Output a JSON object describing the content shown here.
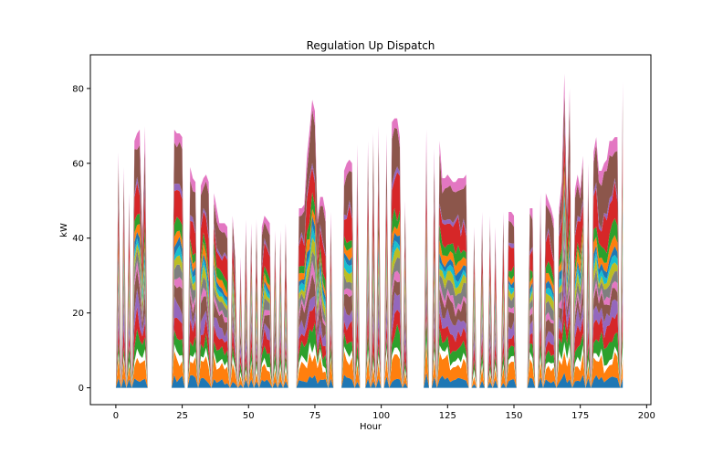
{
  "chart_data": {
    "type": "area",
    "stacked": true,
    "title": "Regulation Up Dispatch",
    "xlabel": "Hour",
    "ylabel": "kW",
    "xlim": [
      -9.6,
      201.6
    ],
    "ylim": [
      -4.5,
      89
    ],
    "xticks": [
      0,
      25,
      50,
      75,
      100,
      125,
      150,
      175,
      200
    ],
    "yticks": [
      0,
      20,
      40,
      60,
      80
    ],
    "grid": false,
    "legend": "none",
    "series_colors": [
      "#1f77b4",
      "#ff7f0e",
      "#ffffff",
      "#2ca02c",
      "#d62728",
      "#9467bd",
      "#8c564b",
      "#e377c2",
      "#7f7f7f",
      "#bcbd22",
      "#17becf",
      "#1f77b4",
      "#ff7f0e",
      "#2ca02c",
      "#d62728",
      "#9467bd",
      "#8c564b",
      "#e377c2",
      "#7f7f7f",
      "#bcbd22"
    ],
    "series_weights": [
      0.04,
      0.08,
      0.03,
      0.06,
      0.07,
      0.06,
      0.07,
      0.03,
      0.05,
      0.04,
      0.03,
      0.03,
      0.04,
      0.05,
      0.12,
      0.02,
      0.15,
      0.05
    ],
    "hours": [
      1,
      3,
      5,
      7,
      8,
      9,
      10,
      11,
      22,
      23,
      24,
      25,
      28,
      29,
      30,
      32,
      33,
      34,
      35,
      37,
      38,
      39,
      40,
      41,
      42,
      44,
      45,
      47,
      49,
      51,
      53,
      55,
      56,
      57,
      58,
      60,
      62,
      64,
      69,
      70,
      71,
      72,
      73,
      74,
      75,
      76,
      77,
      78,
      79,
      81,
      86,
      87,
      88,
      89,
      91,
      95,
      97,
      99,
      102,
      104,
      105,
      106,
      107,
      109,
      117,
      120,
      122,
      123,
      124,
      125,
      126,
      127,
      128,
      129,
      130,
      131,
      132,
      135,
      138,
      141,
      143,
      146,
      148,
      149,
      150,
      156,
      157,
      160,
      162,
      163,
      164,
      165,
      167,
      168,
      169,
      170,
      171,
      173,
      174,
      175,
      176,
      178,
      180,
      181,
      182,
      183,
      184,
      185,
      186,
      187,
      188,
      189,
      191
    ],
    "totals": [
      63,
      59,
      52,
      66,
      68,
      69,
      40,
      70,
      69,
      68,
      68,
      67,
      59,
      56,
      55,
      54,
      56,
      57,
      55,
      52,
      48,
      44,
      44,
      44,
      43,
      46,
      35,
      35,
      45,
      44,
      45,
      43,
      46,
      45,
      44,
      42,
      42,
      44,
      48,
      48,
      49,
      62,
      69,
      77,
      74,
      45,
      51,
      51,
      47,
      47,
      58,
      60,
      61,
      60,
      65,
      66,
      68,
      70,
      68,
      71,
      72,
      72,
      67,
      50,
      69,
      64,
      66,
      56,
      56,
      57,
      56,
      55,
      55,
      56,
      56,
      56,
      57,
      43,
      47,
      46,
      43,
      47,
      47,
      47,
      46,
      48,
      48,
      52,
      52,
      50,
      48,
      45,
      48,
      55,
      84,
      48,
      80,
      53,
      57,
      53,
      62,
      60,
      63,
      67,
      58,
      58,
      60,
      61,
      66,
      66,
      67,
      67,
      82
    ]
  }
}
